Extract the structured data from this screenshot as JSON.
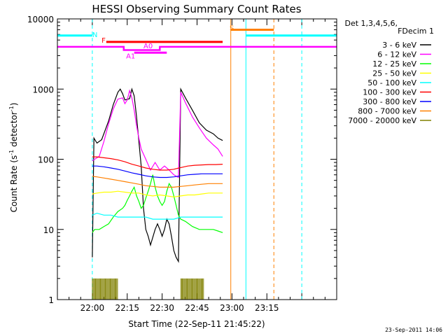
{
  "chart_data": {
    "type": "line",
    "title": "HESSI Observing Summary Count Rates",
    "xlabel": "Start Time (22-Sep-11 21:45:22)",
    "ylabel_main": "Count Rate (s",
    "ylabel_sup1": "-1",
    "ylabel_mid": " detector",
    "ylabel_sup2": "-1",
    "ylabel_end": ")",
    "yscale": "log",
    "ylim": [
      1,
      10000
    ],
    "xlim_min": [
      0,
      120
    ],
    "x_ticks": [
      {
        "min": 15,
        "label": "22:00"
      },
      {
        "min": 30,
        "label": "22:15"
      },
      {
        "min": 45,
        "label": "22:30"
      },
      {
        "min": 60,
        "label": "22:45"
      },
      {
        "min": 75,
        "label": "23:00"
      },
      {
        "min": 90,
        "label": "23:15"
      }
    ],
    "y_ticks": [
      {
        "v": 1,
        "label": "1"
      },
      {
        "v": 10,
        "label": "10"
      },
      {
        "v": 100,
        "label": "100"
      },
      {
        "v": 1000,
        "label": "1000"
      },
      {
        "v": 10000,
        "label": "10000"
      }
    ],
    "legend_header": [
      "Det 1,3,4,5,6,",
      "FDecim 1"
    ],
    "series": [
      {
        "name": "3 - 6 keV",
        "color": "#000000",
        "points": [
          [
            15,
            4
          ],
          [
            15.7,
            200
          ],
          [
            17,
            170
          ],
          [
            19,
            190
          ],
          [
            22,
            350
          ],
          [
            24,
            600
          ],
          [
            26,
            900
          ],
          [
            27,
            1000
          ],
          [
            28,
            860
          ],
          [
            29,
            700
          ],
          [
            31,
            730
          ],
          [
            32,
            1000
          ],
          [
            33,
            800
          ],
          [
            34,
            400
          ],
          [
            35,
            180
          ],
          [
            36,
            80
          ],
          [
            37,
            20
          ],
          [
            38,
            10
          ],
          [
            39,
            8
          ],
          [
            40,
            6
          ],
          [
            42,
            10
          ],
          [
            43,
            12
          ],
          [
            44,
            10
          ],
          [
            45,
            8
          ],
          [
            46,
            10
          ],
          [
            47,
            14
          ],
          [
            48,
            12
          ],
          [
            49,
            8
          ],
          [
            50,
            5
          ],
          [
            51,
            4
          ],
          [
            52,
            3.5
          ],
          [
            53,
            1000
          ],
          [
            55,
            750
          ],
          [
            58,
            500
          ],
          [
            61,
            330
          ],
          [
            64,
            260
          ],
          [
            67,
            230
          ],
          [
            69,
            200
          ],
          [
            71,
            185
          ]
        ]
      },
      {
        "name": "6 - 12 keV",
        "color": "#ff00ff",
        "points": [
          [
            15,
            95
          ],
          [
            16,
            100
          ],
          [
            18,
            110
          ],
          [
            20,
            180
          ],
          [
            22,
            320
          ],
          [
            24,
            520
          ],
          [
            26,
            720
          ],
          [
            28,
            750
          ],
          [
            29,
            620
          ],
          [
            30,
            700
          ],
          [
            31,
            950
          ],
          [
            32,
            750
          ],
          [
            33,
            500
          ],
          [
            34,
            300
          ],
          [
            35,
            200
          ],
          [
            36,
            140
          ],
          [
            38,
            100
          ],
          [
            40,
            70
          ],
          [
            42,
            90
          ],
          [
            44,
            70
          ],
          [
            46,
            80
          ],
          [
            48,
            70
          ],
          [
            50,
            60
          ],
          [
            52,
            55
          ],
          [
            53,
            900
          ],
          [
            55,
            640
          ],
          [
            58,
            400
          ],
          [
            61,
            280
          ],
          [
            64,
            200
          ],
          [
            67,
            160
          ],
          [
            69,
            140
          ],
          [
            71,
            110
          ]
        ]
      },
      {
        "name": "12 - 25 keV",
        "color": "#00ff00",
        "points": [
          [
            15,
            9
          ],
          [
            16,
            10
          ],
          [
            18,
            10
          ],
          [
            20,
            11
          ],
          [
            22,
            12
          ],
          [
            24,
            15
          ],
          [
            26,
            18
          ],
          [
            28,
            20
          ],
          [
            29,
            22
          ],
          [
            30,
            26
          ],
          [
            31,
            30
          ],
          [
            32,
            35
          ],
          [
            33,
            40
          ],
          [
            34,
            30
          ],
          [
            35,
            25
          ],
          [
            36,
            20
          ],
          [
            37,
            22
          ],
          [
            38,
            28
          ],
          [
            39,
            35
          ],
          [
            40,
            45
          ],
          [
            41,
            60
          ],
          [
            42,
            40
          ],
          [
            43,
            30
          ],
          [
            44,
            25
          ],
          [
            45,
            22
          ],
          [
            46,
            25
          ],
          [
            47,
            35
          ],
          [
            48,
            45
          ],
          [
            49,
            40
          ],
          [
            50,
            30
          ],
          [
            51,
            22
          ],
          [
            52,
            16
          ],
          [
            53,
            14
          ],
          [
            55,
            13
          ],
          [
            58,
            11
          ],
          [
            61,
            10
          ],
          [
            64,
            10
          ],
          [
            67,
            10
          ],
          [
            69,
            9.5
          ],
          [
            71,
            9
          ]
        ]
      },
      {
        "name": "25 - 50 keV",
        "color": "#ffff00",
        "points": [
          [
            15,
            32
          ],
          [
            17,
            33
          ],
          [
            20,
            34
          ],
          [
            23,
            34
          ],
          [
            26,
            35
          ],
          [
            29,
            34
          ],
          [
            32,
            33
          ],
          [
            35,
            33
          ],
          [
            38,
            31
          ],
          [
            41,
            30
          ],
          [
            44,
            31
          ],
          [
            47,
            30
          ],
          [
            50,
            29
          ],
          [
            53,
            30
          ],
          [
            56,
            31
          ],
          [
            59,
            31
          ],
          [
            62,
            32
          ],
          [
            65,
            33
          ],
          [
            68,
            33
          ],
          [
            71,
            33
          ]
        ]
      },
      {
        "name": "50 - 100 keV",
        "color": "#00ffff",
        "points": [
          [
            15,
            16
          ],
          [
            17,
            17
          ],
          [
            20,
            16
          ],
          [
            23,
            16
          ],
          [
            26,
            15
          ],
          [
            29,
            15
          ],
          [
            32,
            15
          ],
          [
            35,
            15
          ],
          [
            38,
            15
          ],
          [
            41,
            14
          ],
          [
            44,
            14
          ],
          [
            47,
            14
          ],
          [
            50,
            14
          ],
          [
            53,
            15
          ],
          [
            56,
            15
          ],
          [
            59,
            15
          ],
          [
            62,
            15
          ],
          [
            65,
            15
          ],
          [
            68,
            15
          ],
          [
            71,
            15
          ]
        ]
      },
      {
        "name": "100 - 300 keV",
        "color": "#ff0000",
        "points": [
          [
            15,
            108
          ],
          [
            17,
            108
          ],
          [
            20,
            105
          ],
          [
            23,
            102
          ],
          [
            26,
            98
          ],
          [
            29,
            92
          ],
          [
            32,
            85
          ],
          [
            35,
            80
          ],
          [
            38,
            75
          ],
          [
            41,
            72
          ],
          [
            44,
            70
          ],
          [
            47,
            70
          ],
          [
            50,
            72
          ],
          [
            53,
            76
          ],
          [
            56,
            80
          ],
          [
            59,
            82
          ],
          [
            62,
            83
          ],
          [
            65,
            84
          ],
          [
            68,
            84
          ],
          [
            71,
            85
          ]
        ]
      },
      {
        "name": "300 - 800 keV",
        "color": "#0000ff",
        "points": [
          [
            15,
            80
          ],
          [
            17,
            80
          ],
          [
            20,
            78
          ],
          [
            23,
            75
          ],
          [
            26,
            72
          ],
          [
            29,
            68
          ],
          [
            32,
            64
          ],
          [
            35,
            61
          ],
          [
            38,
            58
          ],
          [
            41,
            56
          ],
          [
            44,
            55
          ],
          [
            47,
            55
          ],
          [
            50,
            56
          ],
          [
            53,
            58
          ],
          [
            56,
            60
          ],
          [
            59,
            61
          ],
          [
            62,
            62
          ],
          [
            65,
            62
          ],
          [
            68,
            62
          ],
          [
            71,
            62
          ]
        ]
      },
      {
        "name": "800 - 7000 keV",
        "color": "#ff8000",
        "points": [
          [
            15,
            57
          ],
          [
            17,
            56
          ],
          [
            20,
            54
          ],
          [
            23,
            52
          ],
          [
            26,
            50
          ],
          [
            29,
            48
          ],
          [
            32,
            46
          ],
          [
            35,
            44
          ],
          [
            38,
            42
          ],
          [
            41,
            41
          ],
          [
            44,
            40
          ],
          [
            47,
            40
          ],
          [
            50,
            40
          ],
          [
            53,
            41
          ],
          [
            56,
            42
          ],
          [
            59,
            43
          ],
          [
            62,
            44
          ],
          [
            65,
            45
          ],
          [
            68,
            45
          ],
          [
            71,
            45
          ]
        ]
      },
      {
        "name": "7000 - 20000 keV",
        "color": "#808000",
        "points": [
          [
            15,
            2
          ],
          [
            26,
            2
          ],
          [
            53,
            2
          ],
          [
            63,
            2
          ]
        ]
      }
    ],
    "atten_state": {
      "color": "#ff00ff",
      "segments": [
        [
          0,
          4000
        ],
        [
          28.5,
          4000
        ],
        [
          28.5,
          3600
        ],
        [
          44,
          3600
        ],
        [
          44,
          4000
        ],
        [
          120,
          4000
        ]
      ]
    },
    "annotations": [
      {
        "text": "N",
        "color": "#00ffff",
        "min": 15,
        "y": 6000
      },
      {
        "text": "F",
        "color": "#ff0000",
        "min": 19,
        "y": 5000
      },
      {
        "text": "A0",
        "color": "#ff00ff",
        "min": 37,
        "y": 4200
      },
      {
        "text": "A1",
        "color": "#ff00ff",
        "min": 29.5,
        "y": 3000
      },
      {
        "text": "S",
        "color": "#ff8000",
        "min": 74,
        "y": 7500
      }
    ],
    "bars": [
      {
        "name": "night",
        "color": "#00ffff",
        "from": 0,
        "to": 15,
        "y": 5800
      },
      {
        "name": "night2",
        "color": "#00ffff",
        "from": 81,
        "to": 120,
        "y": 5800
      },
      {
        "name": "flare",
        "color": "#ff0000",
        "from": 21,
        "to": 71,
        "y": 4700
      },
      {
        "name": "atten",
        "color": "#ff00ff",
        "from": 33,
        "to": 47,
        "y": 3300
      },
      {
        "name": "saa",
        "color": "#ff8000",
        "from": 74.5,
        "to": 93,
        "y": 7000
      }
    ],
    "vlines": [
      {
        "color": "#00ffff",
        "min": 15,
        "dash": true
      },
      {
        "color": "#00ffff",
        "min": 81,
        "dash": false
      },
      {
        "color": "#00ffff",
        "min": 105,
        "dash": true
      },
      {
        "color": "#ff8000",
        "min": 74.5,
        "dash": false
      },
      {
        "color": "#ff8000",
        "min": 93,
        "dash": true
      }
    ],
    "footer": "23-Sep-2011 14:06"
  }
}
